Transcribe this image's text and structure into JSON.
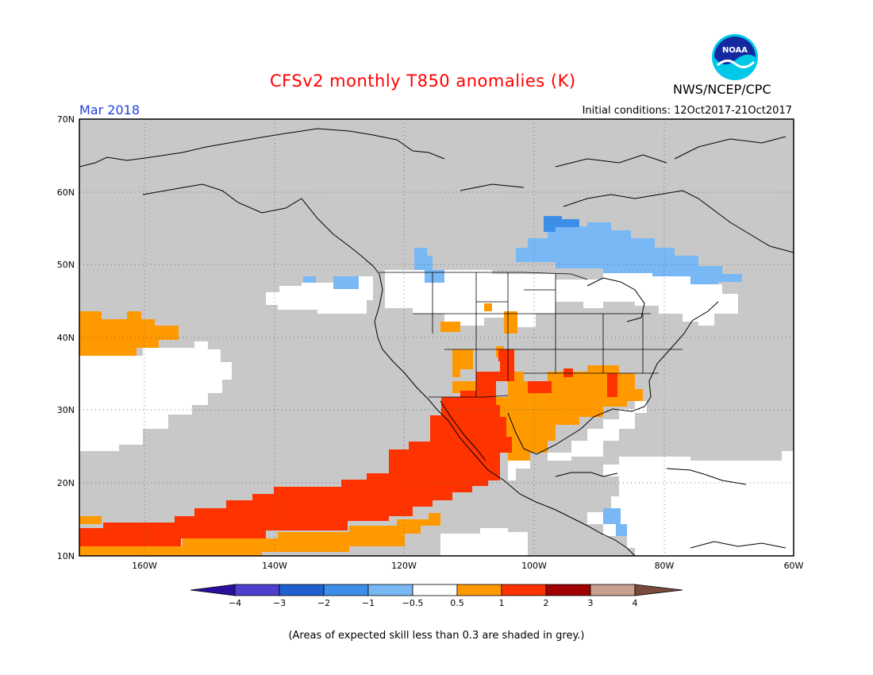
{
  "header": {
    "title": "CFSv2 monthly T850 anomalies (K)",
    "title_color": "#ff0000",
    "agency": "NWS/NCEP/CPC",
    "logo_text": "NOAA",
    "month": "Mar 2018",
    "month_color": "#2040e0",
    "initial_conditions": "Initial conditions: 12Oct2017-21Oct2017"
  },
  "map": {
    "region": "North America / Eastern Pacific",
    "lat_labels": [
      "70N",
      "60N",
      "50N",
      "40N",
      "30N",
      "20N",
      "10N"
    ],
    "lon_labels": [
      "160W",
      "140W",
      "120W",
      "100W",
      "80W",
      "60W"
    ],
    "grid": true,
    "land_color": "#c8c8c8"
  },
  "legend": {
    "ticks": [
      "−4",
      "−3",
      "−2",
      "−1",
      "−0.5",
      "0.5",
      "1",
      "2",
      "3",
      "4"
    ],
    "colors": [
      "#2a0f9c",
      "#4b3fcc",
      "#1f5fd0",
      "#3c8ee8",
      "#78b8f4",
      "#ffffff",
      "#ff9900",
      "#ff3300",
      "#a00000",
      "#c8a090",
      "#7a4a3a"
    ]
  },
  "footnote": "(Areas of expected skill less than 0.3 are shaded in grey.)"
}
